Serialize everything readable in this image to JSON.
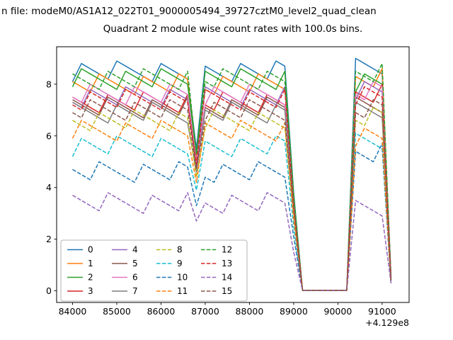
{
  "chart_data": {
    "type": "line",
    "suptitle": "n file: modeM0/AS1A12_022T01_9000005494_39727cztM0_level2_quad_clean",
    "title": "Quadrant 2 module wise count rates with 100.0s bins.",
    "xlabel": "",
    "ylabel": "",
    "x_axis_offset": "+4.129e8",
    "x_ticks": [
      84000,
      85000,
      86000,
      87000,
      88000,
      89000,
      90000,
      91000
    ],
    "y_ticks": [
      0,
      2,
      4,
      6,
      8
    ],
    "xlim": [
      83640,
      91610
    ],
    "ylim": [
      -0.45,
      9.45
    ],
    "grid": false,
    "legend": {
      "position": "lower left",
      "ncol": 4
    },
    "x": [
      84000,
      84200,
      84400,
      84600,
      84800,
      85000,
      85200,
      85400,
      85600,
      85800,
      86000,
      86200,
      86400,
      86600,
      86800,
      87000,
      87200,
      87400,
      87600,
      87800,
      88000,
      88200,
      88400,
      88600,
      88800,
      89000,
      89200,
      89400,
      89600,
      89800,
      90000,
      90200,
      90400,
      90600,
      90800,
      91000,
      91200
    ],
    "series": [
      {
        "name": "0",
        "color": "#1f77b4",
        "dash": false,
        "values": [
          8.1,
          8.8,
          8.6,
          8.4,
          8.2,
          8.9,
          8.7,
          8.5,
          8.3,
          8.1,
          8.8,
          8.6,
          8.4,
          8.2,
          5.5,
          8.7,
          8.5,
          8.3,
          8.1,
          8.8,
          8.6,
          8.4,
          8.2,
          8.9,
          8.7,
          3.8,
          0.02,
          0.02,
          0.02,
          0.02,
          0.02,
          0.02,
          9.0,
          8.8,
          8.6,
          8.4,
          0.6
        ]
      },
      {
        "name": "1",
        "color": "#ff7f0e",
        "dash": false,
        "values": [
          8.1,
          7.9,
          7.7,
          8.4,
          8.2,
          8.0,
          7.8,
          7.6,
          8.3,
          8.1,
          7.9,
          7.7,
          8.4,
          8.2,
          5.2,
          7.8,
          7.6,
          8.3,
          8.1,
          7.9,
          7.7,
          8.4,
          8.2,
          8.0,
          7.8,
          3.6,
          0.02,
          0.02,
          0.02,
          0.02,
          0.02,
          0.02,
          8.3,
          8.1,
          7.9,
          8.6,
          0.5
        ]
      },
      {
        "name": "2",
        "color": "#2ca02c",
        "dash": false,
        "values": [
          7.9,
          8.6,
          8.4,
          8.2,
          8.0,
          7.8,
          8.5,
          8.3,
          8.1,
          7.9,
          8.6,
          8.4,
          8.2,
          8.0,
          5.3,
          8.5,
          8.3,
          8.1,
          7.9,
          8.6,
          8.4,
          8.2,
          8.0,
          7.8,
          8.5,
          3.7,
          0.02,
          0.02,
          0.02,
          0.02,
          0.02,
          0.02,
          7.7,
          8.4,
          8.2,
          8.0,
          0.5
        ]
      },
      {
        "name": "3",
        "color": "#d62728",
        "dash": false,
        "values": [
          7.5,
          7.3,
          7.1,
          6.9,
          7.6,
          7.4,
          7.2,
          7.0,
          7.7,
          7.5,
          7.3,
          7.1,
          6.9,
          7.6,
          4.8,
          7.2,
          7.0,
          7.7,
          7.5,
          7.3,
          7.1,
          6.9,
          7.6,
          7.4,
          7.2,
          3.3,
          0.02,
          0.02,
          0.02,
          0.02,
          0.02,
          0.02,
          7.7,
          7.5,
          7.3,
          8.0,
          0.4
        ]
      },
      {
        "name": "4",
        "color": "#9467bd",
        "dash": false,
        "values": [
          7.3,
          7.1,
          7.8,
          7.6,
          7.4,
          7.2,
          7.9,
          7.7,
          7.5,
          7.3,
          7.1,
          7.8,
          7.6,
          7.4,
          4.9,
          7.9,
          7.7,
          7.5,
          7.3,
          7.1,
          7.8,
          7.6,
          7.4,
          7.2,
          7.9,
          3.4,
          0.02,
          0.02,
          0.02,
          0.02,
          0.02,
          0.02,
          7.4,
          8.1,
          7.9,
          7.7,
          0.5
        ]
      },
      {
        "name": "5",
        "color": "#8c564b",
        "dash": false,
        "values": [
          7.4,
          7.2,
          7.0,
          6.8,
          7.5,
          7.3,
          7.1,
          6.9,
          6.7,
          7.4,
          7.2,
          7.0,
          6.8,
          7.5,
          4.7,
          7.1,
          6.9,
          6.7,
          7.4,
          7.2,
          7.0,
          6.8,
          7.5,
          7.3,
          7.1,
          3.2,
          0.02,
          0.02,
          0.02,
          0.02,
          0.02,
          0.02,
          7.5,
          7.3,
          7.1,
          6.9,
          0.4
        ]
      },
      {
        "name": "6",
        "color": "#e377c2",
        "dash": false,
        "values": [
          7.5,
          7.3,
          8.0,
          7.8,
          7.6,
          7.4,
          7.2,
          7.9,
          7.7,
          7.5,
          7.3,
          8.0,
          7.8,
          7.6,
          5.0,
          7.2,
          7.9,
          7.7,
          7.5,
          7.3,
          8.0,
          7.8,
          7.6,
          7.4,
          7.2,
          3.4,
          0.02,
          0.02,
          0.02,
          0.02,
          0.02,
          0.02,
          7.6,
          7.4,
          8.1,
          7.9,
          0.5
        ]
      },
      {
        "name": "7",
        "color": "#7f7f7f",
        "dash": false,
        "values": [
          7.3,
          7.1,
          6.9,
          6.7,
          6.5,
          7.2,
          7.0,
          6.8,
          6.6,
          7.3,
          7.1,
          6.9,
          6.7,
          6.5,
          4.6,
          7.0,
          6.8,
          6.6,
          7.3,
          7.1,
          6.9,
          6.7,
          6.5,
          7.2,
          7.0,
          3.1,
          0.02,
          0.02,
          0.02,
          0.02,
          0.02,
          0.02,
          7.3,
          7.1,
          6.9,
          6.7,
          0.4
        ]
      },
      {
        "name": "8",
        "color": "#bcbd22",
        "dash": true,
        "values": [
          6.6,
          6.4,
          6.2,
          6.9,
          6.7,
          6.5,
          6.3,
          7.0,
          6.8,
          6.6,
          6.4,
          6.2,
          6.9,
          6.7,
          4.4,
          6.3,
          7.0,
          6.8,
          6.6,
          6.4,
          6.2,
          6.9,
          6.7,
          6.5,
          6.3,
          3.0,
          0.02,
          0.02,
          0.02,
          0.02,
          0.02,
          0.02,
          6.6,
          6.4,
          7.1,
          6.9,
          0.4
        ]
      },
      {
        "name": "9",
        "color": "#17becf",
        "dash": true,
        "values": [
          5.2,
          5.9,
          5.7,
          5.5,
          5.3,
          6.0,
          5.8,
          5.6,
          5.4,
          5.2,
          5.9,
          5.7,
          5.5,
          5.3,
          3.9,
          5.8,
          5.6,
          5.4,
          5.2,
          5.9,
          5.7,
          5.5,
          5.3,
          6.0,
          5.8,
          2.5,
          0.02,
          0.02,
          0.02,
          0.02,
          0.02,
          0.02,
          6.1,
          5.9,
          5.7,
          5.5,
          0.3
        ]
      },
      {
        "name": "10",
        "color": "#1f77b4",
        "dash": true,
        "values": [
          4.7,
          4.5,
          4.3,
          5.0,
          4.8,
          4.6,
          4.4,
          4.2,
          4.9,
          4.7,
          4.5,
          4.3,
          5.0,
          4.8,
          3.3,
          4.4,
          4.2,
          4.9,
          4.7,
          4.5,
          4.3,
          5.0,
          4.8,
          4.6,
          4.4,
          2.1,
          0.02,
          0.02,
          0.02,
          0.02,
          0.02,
          0.02,
          5.4,
          5.2,
          5.0,
          5.7,
          0.3
        ]
      },
      {
        "name": "11",
        "color": "#ff7f0e",
        "dash": true,
        "values": [
          5.9,
          6.6,
          6.4,
          6.2,
          6.0,
          5.8,
          6.5,
          6.3,
          6.1,
          5.9,
          6.6,
          6.4,
          6.2,
          6.0,
          4.2,
          6.5,
          6.3,
          6.1,
          5.9,
          6.6,
          6.4,
          6.2,
          6.0,
          5.8,
          6.5,
          2.8,
          0.02,
          0.02,
          0.02,
          0.02,
          0.02,
          0.02,
          5.6,
          6.3,
          6.1,
          5.9,
          0.3
        ]
      },
      {
        "name": "12",
        "color": "#2ca02c",
        "dash": true,
        "values": [
          8.4,
          8.2,
          8.0,
          7.8,
          8.5,
          8.3,
          8.1,
          7.9,
          8.6,
          8.4,
          8.2,
          8.0,
          7.8,
          8.5,
          5.3,
          8.1,
          7.9,
          8.6,
          8.4,
          8.2,
          8.0,
          7.8,
          8.5,
          8.3,
          8.1,
          3.7,
          0.02,
          0.02,
          0.02,
          0.02,
          0.02,
          0.02,
          8.5,
          8.3,
          8.1,
          8.8,
          0.5
        ]
      },
      {
        "name": "13",
        "color": "#d62728",
        "dash": true,
        "values": [
          7.2,
          7.0,
          7.7,
          7.5,
          7.3,
          7.1,
          7.8,
          7.6,
          7.4,
          7.2,
          7.0,
          7.7,
          7.5,
          7.3,
          4.9,
          7.8,
          7.6,
          7.4,
          7.2,
          7.0,
          7.7,
          7.5,
          7.3,
          7.1,
          7.8,
          3.3,
          0.02,
          0.02,
          0.02,
          0.02,
          0.02,
          0.02,
          7.2,
          7.9,
          7.7,
          7.5,
          0.4
        ]
      },
      {
        "name": "14",
        "color": "#9467bd",
        "dash": true,
        "values": [
          3.7,
          3.5,
          3.3,
          3.1,
          3.8,
          3.6,
          3.4,
          3.2,
          3.0,
          3.7,
          3.5,
          3.3,
          3.1,
          3.8,
          2.7,
          3.4,
          3.2,
          3.0,
          3.7,
          3.5,
          3.3,
          3.1,
          3.8,
          3.6,
          3.4,
          1.5,
          0.02,
          0.02,
          0.02,
          0.02,
          0.02,
          0.02,
          3.5,
          3.3,
          3.1,
          2.9,
          0.3
        ]
      },
      {
        "name": "15",
        "color": "#8c564b",
        "dash": true,
        "values": [
          6.9,
          6.7,
          7.4,
          7.2,
          7.0,
          6.8,
          6.6,
          7.3,
          7.1,
          6.9,
          6.7,
          7.4,
          7.2,
          7.0,
          4.7,
          6.6,
          7.3,
          7.1,
          6.9,
          6.7,
          7.4,
          7.2,
          7.0,
          6.8,
          6.6,
          3.2,
          0.02,
          0.02,
          0.02,
          0.02,
          0.02,
          0.02,
          6.9,
          6.7,
          7.4,
          7.2,
          0.4
        ]
      }
    ]
  }
}
